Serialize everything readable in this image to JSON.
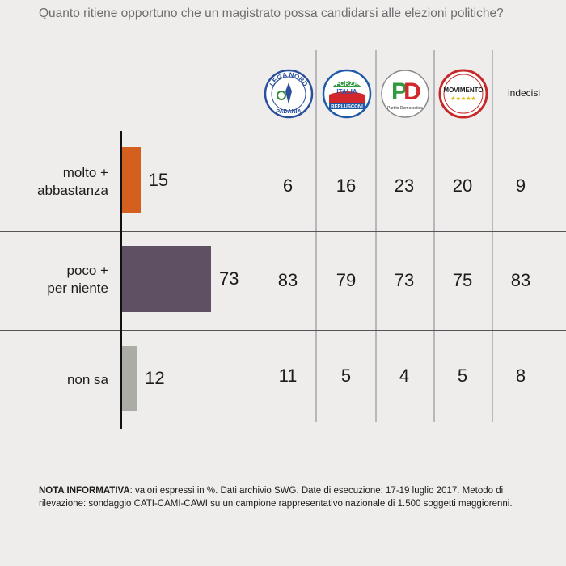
{
  "title": "Quanto ritiene opportuno che un magistrato possa candidarsi alle elezioni politiche?",
  "parties": [
    {
      "name": "Lega Nord",
      "logo_top": "LEGA NORD",
      "logo_bottom": "PADANIA",
      "icon": "lega-nord-logo"
    },
    {
      "name": "Forza Italia",
      "logo_top": "FORZA",
      "logo_mid": "ITALIA",
      "logo_bottom": "BERLUSCONI",
      "icon": "forza-italia-logo"
    },
    {
      "name": "PD",
      "logo_top": "PD",
      "logo_bottom": "Partito Democratico",
      "icon": "pd-logo"
    },
    {
      "name": "Movimento 5 Stelle",
      "logo_top": "MOVIMENTO",
      "logo_bottom": "★★★★★",
      "icon": "m5s-logo"
    }
  ],
  "indecisi_label": "indecisi",
  "chart_data": {
    "type": "bar",
    "orientation": "horizontal",
    "categories": [
      "molto + abbastanza",
      "poco + per niente",
      "non sa"
    ],
    "category_lines": [
      [
        "molto +",
        "abbastanza"
      ],
      [
        "poco +",
        "per niente"
      ],
      [
        "non sa"
      ]
    ],
    "values": [
      15,
      73,
      12
    ],
    "bar_colors": [
      "#d3601f",
      "#5f5163",
      "#abaca6"
    ],
    "table": {
      "columns": [
        "Lega Nord",
        "Forza Italia",
        "PD",
        "Movimento 5 Stelle",
        "indecisi"
      ],
      "rows": [
        [
          6,
          16,
          23,
          20,
          9
        ],
        [
          83,
          79,
          73,
          75,
          83
        ],
        [
          11,
          5,
          4,
          5,
          8
        ]
      ]
    }
  },
  "note": {
    "label": "NOTA INFORMATIVA",
    "text": ": valori espressi in %. Dati archivio SWG. Date di esecuzione: 17-19 luglio 2017. Metodo di rilevazione: sondaggio CATI-CAMI-CAWI su un campione rappresentativo nazionale di 1.500 soggetti maggiorenni."
  }
}
